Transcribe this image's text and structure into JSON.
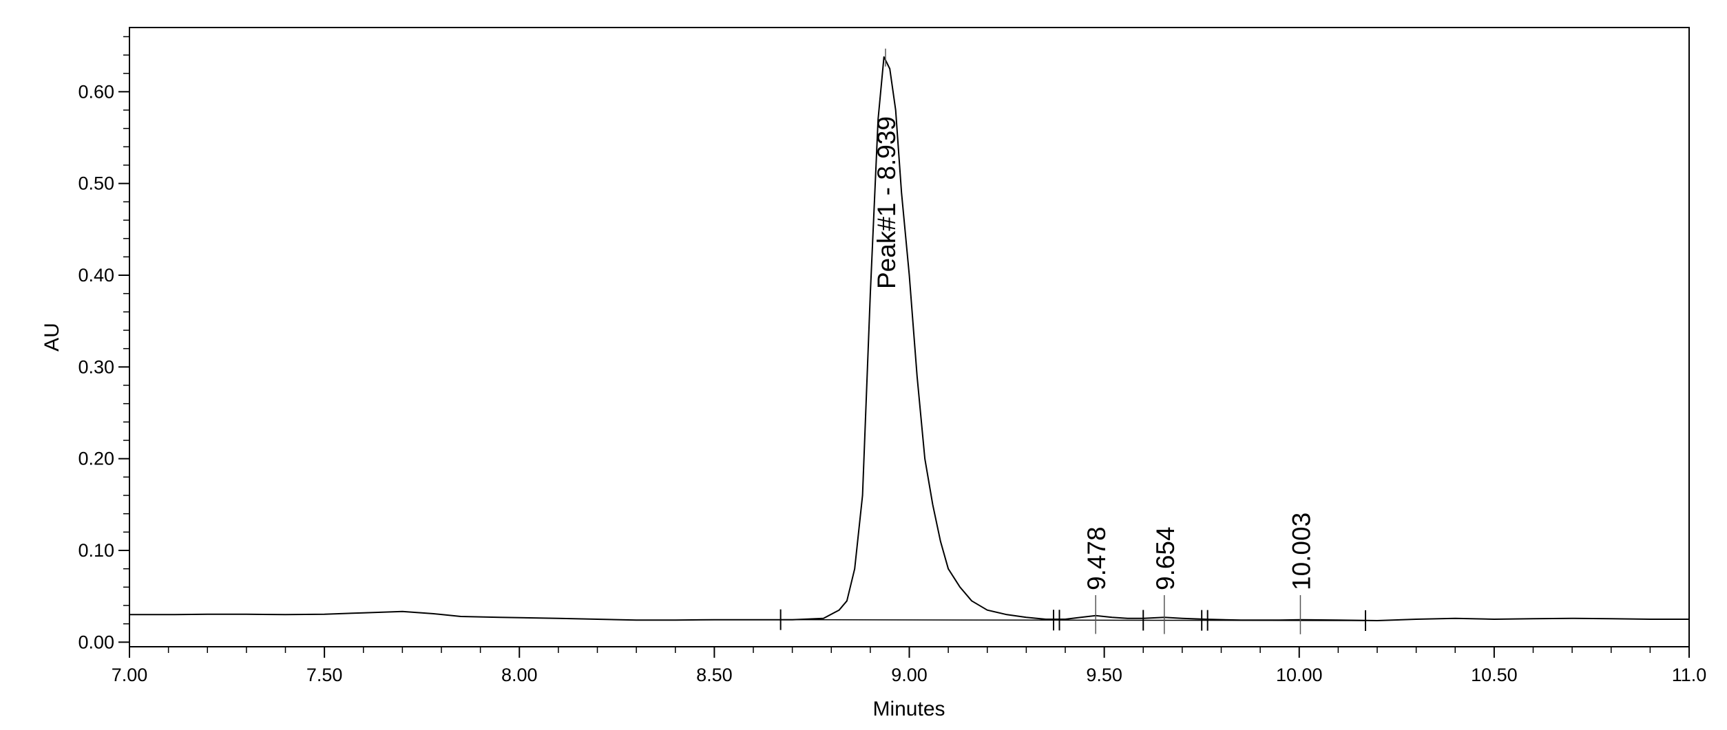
{
  "chart_data": {
    "type": "line",
    "title": "",
    "xlabel": "Minutes",
    "ylabel": "AU",
    "xlim": [
      7.0,
      11.0
    ],
    "ylim": [
      -0.005,
      0.67
    ],
    "grid": false,
    "x_ticks": [
      7.0,
      7.5,
      8.0,
      8.5,
      9.0,
      9.5,
      10.0,
      10.5,
      11.0
    ],
    "x_tick_labels": [
      "7.00",
      "7.50",
      "8.00",
      "8.50",
      "9.00",
      "9.50",
      "10.00",
      "10.50",
      "11.0"
    ],
    "y_ticks": [
      0.0,
      0.1,
      0.2,
      0.3,
      0.4,
      0.5,
      0.6
    ],
    "y_tick_labels": [
      "0.00",
      "0.10",
      "0.20",
      "0.30",
      "0.40",
      "0.50",
      "0.60"
    ],
    "series": [
      {
        "points": [
          [
            7.0,
            0.03
          ],
          [
            7.1,
            0.03
          ],
          [
            7.2,
            0.0305
          ],
          [
            7.3,
            0.0305
          ],
          [
            7.4,
            0.03
          ],
          [
            7.5,
            0.0305
          ],
          [
            7.6,
            0.032
          ],
          [
            7.7,
            0.0335
          ],
          [
            7.78,
            0.031
          ],
          [
            7.85,
            0.028
          ],
          [
            7.95,
            0.027
          ],
          [
            8.1,
            0.026
          ],
          [
            8.2,
            0.025
          ],
          [
            8.3,
            0.024
          ],
          [
            8.4,
            0.024
          ],
          [
            8.5,
            0.0245
          ],
          [
            8.6,
            0.0245
          ],
          [
            8.7,
            0.0245
          ],
          [
            8.78,
            0.026
          ],
          [
            8.82,
            0.035
          ],
          [
            8.84,
            0.045
          ],
          [
            8.86,
            0.08
          ],
          [
            8.88,
            0.16
          ],
          [
            8.9,
            0.38
          ],
          [
            8.92,
            0.57
          ],
          [
            8.935,
            0.638
          ],
          [
            8.95,
            0.625
          ],
          [
            8.965,
            0.58
          ],
          [
            8.98,
            0.49
          ],
          [
            9.0,
            0.4
          ],
          [
            9.02,
            0.29
          ],
          [
            9.04,
            0.2
          ],
          [
            9.06,
            0.15
          ],
          [
            9.08,
            0.11
          ],
          [
            9.1,
            0.08
          ],
          [
            9.13,
            0.06
          ],
          [
            9.16,
            0.045
          ],
          [
            9.2,
            0.035
          ],
          [
            9.25,
            0.03
          ],
          [
            9.3,
            0.027
          ],
          [
            9.35,
            0.025
          ],
          [
            9.4,
            0.025
          ],
          [
            9.44,
            0.027
          ],
          [
            9.478,
            0.029
          ],
          [
            9.52,
            0.027
          ],
          [
            9.56,
            0.026
          ],
          [
            9.6,
            0.026
          ],
          [
            9.654,
            0.027
          ],
          [
            9.7,
            0.026
          ],
          [
            9.76,
            0.025
          ],
          [
            9.85,
            0.024
          ],
          [
            9.95,
            0.024
          ],
          [
            10.003,
            0.0245
          ],
          [
            10.1,
            0.024
          ],
          [
            10.2,
            0.0235
          ],
          [
            10.3,
            0.025
          ],
          [
            10.4,
            0.026
          ],
          [
            10.5,
            0.025
          ],
          [
            10.6,
            0.0255
          ],
          [
            10.7,
            0.026
          ],
          [
            10.8,
            0.0255
          ],
          [
            10.9,
            0.025
          ],
          [
            11.0,
            0.025
          ]
        ]
      }
    ],
    "baseline": [
      [
        8.67,
        0.0245
      ],
      [
        10.17,
        0.0235
      ]
    ],
    "integration_marks": [
      8.67,
      9.37,
      9.385,
      9.6,
      9.75,
      9.765,
      10.17
    ],
    "peaks": [
      {
        "label": "Peak#1 - 8.939",
        "rt": 8.939,
        "apex": 0.638
      },
      {
        "label": "9.478",
        "rt": 9.478,
        "apex": 0.029
      },
      {
        "label": "9.654",
        "rt": 9.654,
        "apex": 0.027
      },
      {
        "label": "10.003",
        "rt": 10.003,
        "apex": 0.0245
      }
    ]
  }
}
